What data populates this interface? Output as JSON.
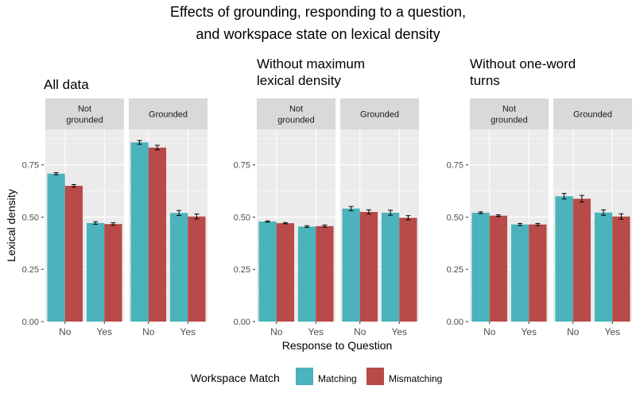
{
  "title_line1": "Effects of grounding, responding to a question,",
  "title_line2": "and workspace state on lexical density",
  "colors": {
    "panel_bg": "#EBEBEB",
    "strip_bg": "#D9D9D9",
    "grid": "#FFFFFF"
  },
  "chart_data": {
    "type": "bar",
    "ylabel": "Lexical density",
    "xlabel": "Response to Question",
    "yticks": [
      0.0,
      0.25,
      0.5,
      0.75
    ],
    "ytick_labels": [
      "0.00",
      "0.25",
      "0.50",
      "0.75"
    ],
    "ylim": [
      0,
      0.92
    ],
    "categories": [
      "No",
      "Yes"
    ],
    "facets": [
      "Not\ngrounded",
      "Grounded"
    ],
    "legend": {
      "title": "Workspace Match",
      "position": "bottom",
      "entries": [
        {
          "name": "Matching",
          "color": "#4AB3BC"
        },
        {
          "name": "Mismatching",
          "color": "#B84A49"
        }
      ]
    },
    "panels": [
      {
        "title": "All data",
        "facets": [
          {
            "categories": [
              "No",
              "Yes"
            ],
            "matching": [
              0.708,
              0.472
            ],
            "matching_err": [
              0.005,
              0.006
            ],
            "mismatching": [
              0.65,
              0.467
            ],
            "mismatching_err": [
              0.006,
              0.006
            ]
          },
          {
            "categories": [
              "No",
              "Yes"
            ],
            "matching": [
              0.858,
              0.52
            ],
            "matching_err": [
              0.009,
              0.012
            ],
            "mismatching": [
              0.833,
              0.503
            ],
            "mismatching_err": [
              0.011,
              0.012
            ]
          }
        ]
      },
      {
        "title": "Without maximum\nlexical density",
        "facets": [
          {
            "categories": [
              "No",
              "Yes"
            ],
            "matching": [
              0.479,
              0.455
            ],
            "matching_err": [
              0.003,
              0.004
            ],
            "mismatching": [
              0.471,
              0.457
            ],
            "mismatching_err": [
              0.003,
              0.005
            ]
          },
          {
            "categories": [
              "No",
              "Yes"
            ],
            "matching": [
              0.541,
              0.521
            ],
            "matching_err": [
              0.01,
              0.012
            ],
            "mismatching": [
              0.525,
              0.497
            ],
            "mismatching_err": [
              0.01,
              0.01
            ]
          }
        ]
      },
      {
        "title": "Without one-word\nturns",
        "facets": [
          {
            "categories": [
              "No",
              "Yes"
            ],
            "matching": [
              0.521,
              0.465
            ],
            "matching_err": [
              0.004,
              0.005
            ],
            "mismatching": [
              0.507,
              0.465
            ],
            "mismatching_err": [
              0.004,
              0.005
            ]
          },
          {
            "categories": [
              "No",
              "Yes"
            ],
            "matching": [
              0.6,
              0.522
            ],
            "matching_err": [
              0.013,
              0.013
            ],
            "mismatching": [
              0.588,
              0.503
            ],
            "mismatching_err": [
              0.016,
              0.013
            ]
          }
        ]
      }
    ]
  }
}
